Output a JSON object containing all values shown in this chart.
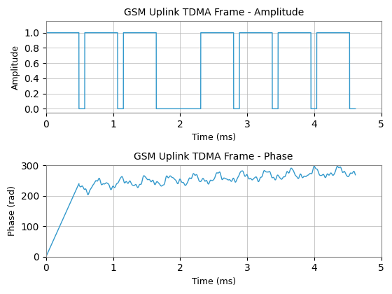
{
  "title_amplitude": "GSM Uplink TDMA Frame - Amplitude",
  "title_phase": "GSM Uplink TDMA Frame - Phase",
  "xlabel": "Time (ms)",
  "ylabel_amplitude": "Amplitude",
  "ylabel_phase": "Phase (rad)",
  "xlim": [
    0,
    5
  ],
  "ylim_amplitude": [
    -0.05,
    1.15
  ],
  "ylim_phase": [
    0,
    300
  ],
  "line_color": "#3399cc",
  "line_width": 1.0,
  "figsize": [
    5.6,
    4.2
  ],
  "dpi": 100,
  "background_color": "white",
  "grid_color": "#b0b0b0",
  "slot_duration_ms": 0.5769,
  "frame_duration_ms": 4.615,
  "yticks_amplitude": [
    0,
    0.2,
    0.4,
    0.6,
    0.8,
    1.0
  ],
  "yticks_phase": [
    0,
    100,
    200,
    300
  ],
  "xticks": [
    0,
    1,
    2,
    3,
    4,
    5
  ]
}
